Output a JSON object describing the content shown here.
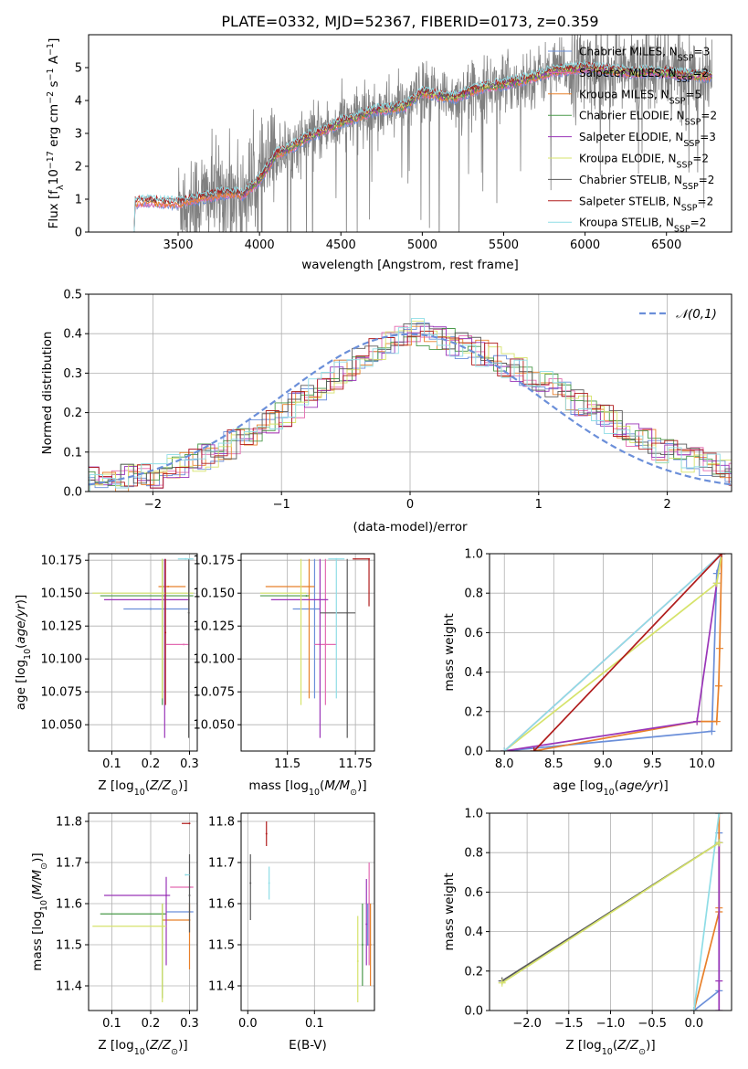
{
  "page_title": "PLATE=0332, MJD=52367, FIBERID=0173, z=0.359",
  "colors": {
    "Chabrier MILES": "#6b8fd9",
    "Salpeter MILES": "#e36bb1",
    "Kroupa MILES": "#e8802a",
    "Chabrier ELODIE": "#4a9a4a",
    "Salpeter ELODIE": "#9a35b8",
    "Kroupa ELODIE": "#d6e36b",
    "Chabrier STELIB": "#5a5a5a",
    "Salpeter STELIB": "#b01c1c",
    "Kroupa STELIB": "#8fdde6"
  },
  "legend_spec": [
    {
      "name": "Chabrier MILES",
      "prefix": "Chabrier MILES, N",
      "sub": "SSP",
      "suffix": "=3"
    },
    {
      "name": "Salpeter MILES",
      "prefix": "Salpeter MILES, N",
      "sub": "SSP",
      "suffix": "=2"
    },
    {
      "name": "Kroupa MILES",
      "prefix": "Kroupa MILES, N",
      "sub": "SSP",
      "suffix": "=5"
    },
    {
      "name": "Chabrier ELODIE",
      "prefix": "Chabrier ELODIE, N",
      "sub": "SSP",
      "suffix": "=2"
    },
    {
      "name": "Salpeter ELODIE",
      "prefix": "Salpeter ELODIE, N",
      "sub": "SSP",
      "suffix": "=3"
    },
    {
      "name": "Kroupa ELODIE",
      "prefix": "Kroupa ELODIE, N",
      "sub": "SSP",
      "suffix": "=2"
    },
    {
      "name": "Chabrier STELIB",
      "prefix": "Chabrier STELIB, N",
      "sub": "SSP",
      "suffix": "=2"
    },
    {
      "name": "Salpeter STELIB",
      "prefix": "Salpeter STELIB, N",
      "sub": "SSP",
      "suffix": "=2"
    },
    {
      "name": "Kroupa STELIB",
      "prefix": "Kroupa STELIB, N",
      "sub": "SSP",
      "suffix": "=2"
    }
  ],
  "chart_data": [
    {
      "id": "spectrum",
      "type": "line",
      "xlabel": "wavelength [Angstrom, rest frame]",
      "ylabel": "Flux [f_λ 10^-17 erg cm^-2 s^-1 A^-1]",
      "xlim": [
        2950,
        6900
      ],
      "ylim": [
        0,
        6
      ],
      "xticks": [
        3500,
        4000,
        4500,
        5000,
        5500,
        6000,
        6500
      ],
      "yticks": [
        0,
        1,
        2,
        3,
        4,
        5
      ],
      "legend": "top-right",
      "model_continuum": {
        "x": [
          3200,
          3230,
          3300,
          3400,
          3500,
          3600,
          3700,
          3800,
          3900,
          4000,
          4100,
          4200,
          4300,
          4400,
          4500,
          4600,
          4700,
          4800,
          4900,
          5000,
          5100,
          5200,
          5300,
          5400,
          5500,
          5600,
          5700,
          5800,
          5900,
          6000,
          6100,
          6200,
          6300,
          6400,
          6500,
          6600,
          6700,
          6780
        ],
        "y": [
          0,
          0.9,
          0.95,
          0.9,
          0.88,
          1.0,
          1.1,
          1.2,
          1.15,
          1.6,
          2.35,
          2.6,
          2.9,
          3.1,
          3.35,
          3.5,
          3.7,
          3.75,
          3.85,
          4.25,
          4.15,
          4.1,
          4.3,
          4.45,
          4.5,
          4.6,
          4.75,
          4.9,
          4.95,
          5.0,
          4.95,
          4.9,
          4.85,
          4.9,
          4.85,
          4.8,
          4.75,
          4.75
        ]
      },
      "series": [
        {
          "name": "Chabrier MILES",
          "x_start": 3230,
          "x_end": 6780
        },
        {
          "name": "Salpeter MILES",
          "x_start": 3230,
          "x_end": 6780
        },
        {
          "name": "Kroupa MILES",
          "x_start": 3230,
          "x_end": 6780
        },
        {
          "name": "Chabrier ELODIE",
          "x_start": 3900,
          "x_end": 6780
        },
        {
          "name": "Salpeter ELODIE",
          "x_start": 3900,
          "x_end": 6780
        },
        {
          "name": "Kroupa ELODIE",
          "x_start": 3900,
          "x_end": 6780
        },
        {
          "name": "Chabrier STELIB",
          "x_start": 3230,
          "x_end": 6780
        },
        {
          "name": "Salpeter STELIB",
          "x_start": 3230,
          "x_end": 6780
        },
        {
          "name": "Kroupa STELIB",
          "x_start": 3200,
          "x_end": 6780
        }
      ],
      "data_spectrum": {
        "color": "#808080",
        "x_start": 3500,
        "x_end": 6780,
        "noise_sd": 0.55
      }
    },
    {
      "id": "residuals",
      "type": "histogram",
      "xlabel": "(data-model)/error",
      "ylabel": "Normed distribution",
      "xlim": [
        -2.5,
        2.5
      ],
      "ylim": [
        0,
        0.5
      ],
      "xticks": [
        -2,
        -1,
        0,
        1,
        2
      ],
      "yticks": [
        0.0,
        0.1,
        0.2,
        0.3,
        0.4,
        0.5
      ],
      "legend": "top-right",
      "reference_curve": {
        "name": "𝒩(0,1)",
        "color": "#6b8fd9",
        "mean": 0,
        "sd": 1
      },
      "bin_edges_step": 0.1,
      "envelope": {
        "x": [
          -2.5,
          -2,
          -1.5,
          -1,
          -0.5,
          0,
          0.5,
          1,
          1.5,
          2,
          2.5
        ],
        "y": [
          0.03,
          0.04,
          0.1,
          0.19,
          0.31,
          0.41,
          0.36,
          0.29,
          0.19,
          0.1,
          0.05
        ]
      }
    },
    {
      "id": "age-vs-Z",
      "type": "errorbar",
      "xlabel": "Z [log10(Z/Z☉)]",
      "ylabel": "age [log10(age/yr)]",
      "xlim": [
        0.04,
        0.32
      ],
      "ylim": [
        10.03,
        10.18
      ],
      "xticks": [
        0.1,
        0.2,
        0.3
      ],
      "yticks": [
        10.05,
        10.075,
        10.1,
        10.125,
        10.15,
        10.175
      ],
      "points": [
        {
          "name": "Chabrier MILES",
          "x": 0.2,
          "xerr": [
            0.13,
            0.3
          ],
          "y": 10.138,
          "yerr": [
            10.138,
            10.138
          ]
        },
        {
          "name": "Salpeter MILES",
          "x": 0.285,
          "xerr": [
            0.24,
            0.3
          ],
          "y": 10.111,
          "yerr": [
            10.111,
            10.111
          ]
        },
        {
          "name": "Kroupa MILES",
          "x": 0.245,
          "xerr": [
            0.22,
            0.29
          ],
          "y": 10.155,
          "yerr": [
            10.155,
            10.155
          ]
        },
        {
          "name": "Chabrier ELODIE",
          "x": 0.23,
          "xerr": [
            0.07,
            0.31
          ],
          "y": 10.148,
          "yerr": [
            10.065,
            10.176
          ]
        },
        {
          "name": "Salpeter ELODIE",
          "x": 0.236,
          "xerr": [
            0.08,
            0.3
          ],
          "y": 10.145,
          "yerr": [
            10.04,
            10.176
          ]
        },
        {
          "name": "Kroupa ELODIE",
          "x": 0.23,
          "xerr": [
            0.05,
            0.31
          ],
          "y": 10.15,
          "yerr": [
            10.07,
            10.176
          ]
        },
        {
          "name": "Chabrier STELIB",
          "x": 0.298,
          "xerr": [
            0.298,
            0.298
          ],
          "y": 10.135,
          "yerr": [
            10.04,
            10.176
          ]
        },
        {
          "name": "Salpeter STELIB",
          "x": 0.238,
          "xerr": [
            0.238,
            0.238
          ],
          "y": 10.12,
          "yerr": [
            10.065,
            10.176
          ]
        },
        {
          "name": "Kroupa STELIB",
          "x": 0.29,
          "xerr": [
            0.27,
            0.31
          ],
          "y": 10.176,
          "yerr": [
            10.176,
            10.176
          ]
        }
      ]
    },
    {
      "id": "age-vs-mass",
      "type": "errorbar",
      "xlabel": "mass [log10(M/M☉)]",
      "ylabel": "",
      "xlim": [
        11.33,
        11.82
      ],
      "ylim": [
        10.03,
        10.18
      ],
      "xticks": [
        11.5,
        11.75
      ],
      "yticks": [
        10.05,
        10.075,
        10.1,
        10.125,
        10.15,
        10.175
      ],
      "points": [
        {
          "name": "Chabrier MILES",
          "x": 11.6,
          "xerr": [
            11.52,
            11.62
          ],
          "y": 10.138,
          "yerr": [
            10.07,
            10.176
          ]
        },
        {
          "name": "Salpeter MILES",
          "x": 11.64,
          "xerr": [
            11.6,
            11.68
          ],
          "y": 10.111,
          "yerr": [
            10.065,
            10.176
          ]
        },
        {
          "name": "Kroupa MILES",
          "x": 11.58,
          "xerr": [
            11.42,
            11.6
          ],
          "y": 10.155,
          "yerr": [
            10.07,
            10.176
          ]
        },
        {
          "name": "Chabrier ELODIE",
          "x": 11.57,
          "xerr": [
            11.4,
            11.58
          ],
          "y": 10.148,
          "yerr": [
            10.148,
            10.148
          ]
        },
        {
          "name": "Salpeter ELODIE",
          "x": 11.62,
          "xerr": [
            11.44,
            11.65
          ],
          "y": 10.145,
          "yerr": [
            10.04,
            10.176
          ]
        },
        {
          "name": "Kroupa ELODIE",
          "x": 11.55,
          "xerr": [
            11.4,
            11.57
          ],
          "y": 10.15,
          "yerr": [
            10.065,
            10.176
          ]
        },
        {
          "name": "Chabrier STELIB",
          "x": 11.72,
          "xerr": [
            11.62,
            11.75
          ],
          "y": 10.135,
          "yerr": [
            10.04,
            10.176
          ]
        },
        {
          "name": "Salpeter STELIB",
          "x": 11.8,
          "xerr": [
            11.74,
            11.8
          ],
          "y": 10.176,
          "yerr": [
            10.14,
            10.176
          ]
        },
        {
          "name": "Kroupa STELIB",
          "x": 11.68,
          "xerr": [
            11.65,
            11.71
          ],
          "y": 10.176,
          "yerr": [
            10.07,
            10.176
          ]
        }
      ]
    },
    {
      "id": "massweight-vs-age",
      "type": "line",
      "xlabel": "age [log10(age/yr)]",
      "ylabel": "mass weight",
      "xlim": [
        7.85,
        10.3
      ],
      "ylim": [
        0,
        1
      ],
      "xticks": [
        8.0,
        8.5,
        9.0,
        9.5,
        10.0
      ],
      "yticks": [
        0.0,
        0.2,
        0.4,
        0.6,
        0.8,
        1.0
      ],
      "series": [
        {
          "name": "Chabrier MILES",
          "x": [
            8.0,
            10.1,
            10.15,
            10.2
          ],
          "y": [
            0.0,
            0.1,
            0.9,
            1.0
          ]
        },
        {
          "name": "Kroupa MILES",
          "x": [
            8.3,
            9.95,
            10.15,
            10.17,
            10.18,
            10.2
          ],
          "y": [
            0.0,
            0.15,
            0.15,
            0.33,
            0.52,
            1.0
          ]
        },
        {
          "name": "Salpeter ELODIE",
          "x": [
            8.0,
            9.95,
            10.15
          ],
          "y": [
            0.0,
            0.15,
            0.85
          ]
        },
        {
          "name": "Kroupa ELODIE",
          "x": [
            8.0,
            10.15,
            10.2
          ],
          "y": [
            0.0,
            0.85,
            1.0
          ]
        },
        {
          "name": "Salpeter MILES",
          "x": [
            8.0,
            10.2
          ],
          "y": [
            0.0,
            1.0
          ]
        },
        {
          "name": "Kroupa STELIB",
          "x": [
            8.0,
            10.2
          ],
          "y": [
            0.0,
            1.0
          ]
        },
        {
          "name": "Salpeter STELIB",
          "x": [
            8.3,
            10.2
          ],
          "y": [
            0.0,
            1.0
          ]
        }
      ]
    },
    {
      "id": "mass-vs-Z",
      "type": "errorbar",
      "xlabel": "Z [log10(Z/Z☉)]",
      "ylabel": "mass [log10(M/M☉)]",
      "xlim": [
        0.04,
        0.32
      ],
      "ylim": [
        11.34,
        11.82
      ],
      "xticks": [
        0.1,
        0.2,
        0.3
      ],
      "yticks": [
        11.4,
        11.5,
        11.6,
        11.7,
        11.8
      ],
      "points": [
        {
          "name": "Chabrier MILES",
          "x": 0.3,
          "xerr": [
            0.24,
            0.31
          ],
          "y": 11.58,
          "yerr": [
            11.58,
            11.58
          ]
        },
        {
          "name": "Salpeter MILES",
          "x": 0.3,
          "xerr": [
            0.25,
            0.31
          ],
          "y": 11.64,
          "yerr": [
            11.64,
            11.64
          ]
        },
        {
          "name": "Kroupa MILES",
          "x": 0.3,
          "xerr": [
            0.23,
            0.3
          ],
          "y": 11.56,
          "yerr": [
            11.44,
            11.6
          ]
        },
        {
          "name": "Chabrier ELODIE",
          "x": 0.23,
          "xerr": [
            0.07,
            0.24
          ],
          "y": 11.575,
          "yerr": [
            11.37,
            11.6
          ]
        },
        {
          "name": "Salpeter ELODIE",
          "x": 0.24,
          "xerr": [
            0.08,
            0.25
          ],
          "y": 11.62,
          "yerr": [
            11.45,
            11.665
          ]
        },
        {
          "name": "Kroupa ELODIE",
          "x": 0.23,
          "xerr": [
            0.05,
            0.24
          ],
          "y": 11.545,
          "yerr": [
            11.36,
            11.6
          ]
        },
        {
          "name": "Chabrier STELIB",
          "x": 0.3,
          "xerr": [
            0.3,
            0.3
          ],
          "y": 11.62,
          "yerr": [
            11.53,
            11.72
          ]
        },
        {
          "name": "Salpeter STELIB",
          "x": 0.3,
          "xerr": [
            0.28,
            0.3
          ],
          "y": 11.795,
          "yerr": [
            11.795,
            11.795
          ]
        },
        {
          "name": "Kroupa STELIB",
          "x": 0.29,
          "xerr": [
            0.29,
            0.3
          ],
          "y": 11.67,
          "yerr": [
            11.67,
            11.67
          ]
        }
      ]
    },
    {
      "id": "mass-vs-ebv",
      "type": "errorbar",
      "xlabel": "E(B-V)",
      "ylabel": "",
      "xlim": [
        -0.01,
        0.19
      ],
      "ylim": [
        11.34,
        11.82
      ],
      "xticks": [
        0.0,
        0.1
      ],
      "yticks": [
        11.4,
        11.5,
        11.6,
        11.7,
        11.8
      ],
      "points": [
        {
          "name": "Chabrier MILES",
          "x": 0.18,
          "xerr": [
            0.18,
            0.18
          ],
          "y": 11.5,
          "yerr": [
            11.5,
            11.6
          ]
        },
        {
          "name": "Salpeter MILES",
          "x": 0.182,
          "xerr": [
            0.182,
            0.182
          ],
          "y": 11.6,
          "yerr": [
            11.45,
            11.7
          ]
        },
        {
          "name": "Kroupa MILES",
          "x": 0.184,
          "xerr": [
            0.184,
            0.184
          ],
          "y": 11.5,
          "yerr": [
            11.4,
            11.6
          ]
        },
        {
          "name": "Chabrier ELODIE",
          "x": 0.172,
          "xerr": [
            0.172,
            0.172
          ],
          "y": 11.5,
          "yerr": [
            11.4,
            11.6
          ]
        },
        {
          "name": "Salpeter ELODIE",
          "x": 0.178,
          "xerr": [
            0.178,
            0.178
          ],
          "y": 11.55,
          "yerr": [
            11.45,
            11.66
          ]
        },
        {
          "name": "Kroupa ELODIE",
          "x": 0.165,
          "xerr": [
            0.165,
            0.165
          ],
          "y": 11.46,
          "yerr": [
            11.36,
            11.57
          ]
        },
        {
          "name": "Chabrier STELIB",
          "x": 0.004,
          "xerr": [
            0.004,
            0.004
          ],
          "y": 11.65,
          "yerr": [
            11.56,
            11.72
          ]
        },
        {
          "name": "Salpeter STELIB",
          "x": 0.028,
          "xerr": [
            0.028,
            0.028
          ],
          "y": 11.77,
          "yerr": [
            11.74,
            11.8
          ]
        },
        {
          "name": "Kroupa STELIB",
          "x": 0.032,
          "xerr": [
            0.032,
            0.032
          ],
          "y": 11.65,
          "yerr": [
            11.61,
            11.69
          ]
        }
      ]
    },
    {
      "id": "massweight-vs-Z",
      "type": "line",
      "xlabel": "Z [log10(Z/Z☉)]",
      "ylabel": "mass weight",
      "xlim": [
        -2.45,
        0.45
      ],
      "ylim": [
        0,
        1
      ],
      "xticks": [
        -2.0,
        -1.5,
        -1.0,
        -0.5,
        0.0
      ],
      "yticks": [
        0.0,
        0.2,
        0.4,
        0.6,
        0.8,
        1.0
      ],
      "series": [
        {
          "name": "Chabrier MILES",
          "x": [
            0.0,
            0.3,
            0.3,
            0.3
          ],
          "y": [
            0.0,
            0.1,
            0.9,
            1.0
          ]
        },
        {
          "name": "Kroupa MILES",
          "x": [
            0.0,
            0.3,
            0.3,
            0.3
          ],
          "y": [
            0.0,
            0.5,
            0.52,
            1.0
          ]
        },
        {
          "name": "Salpeter ELODIE",
          "x": [
            0.3,
            0.3,
            0.3
          ],
          "y": [
            0.0,
            0.15,
            0.85
          ]
        },
        {
          "name": "Kroupa STELIB",
          "x": [
            0.0,
            0.3
          ],
          "y": [
            0.0,
            1.0
          ]
        },
        {
          "name": "Chabrier STELIB",
          "x": [
            -2.3,
            0.3
          ],
          "y": [
            0.15,
            0.85
          ]
        },
        {
          "name": "Kroupa ELODIE",
          "x": [
            -2.3,
            0.3
          ],
          "y": [
            0.14,
            0.85
          ]
        }
      ]
    }
  ]
}
